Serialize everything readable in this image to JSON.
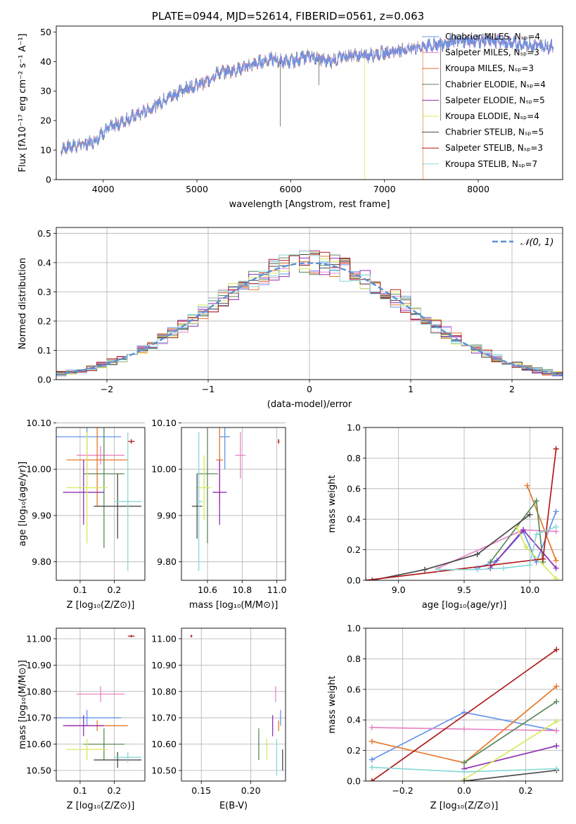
{
  "series_colors": [
    "#6495ed",
    "#e983c6",
    "#e8772a",
    "#5b8a5b",
    "#8e2fb5",
    "#d9e85c",
    "#4a4a4a",
    "#b01c1c",
    "#8ad8d8"
  ],
  "chart_data": [
    {
      "type": "line",
      "title": "PLATE=0944, MJD=52614, FIBERID=0561, z=0.063",
      "xlabel": "wavelength [Angstrom, rest frame]",
      "ylabel": "Flux [fλ10⁻¹⁷ erg cm⁻² s⁻¹ A⁻¹]",
      "xlim": [
        3500,
        8900
      ],
      "ylim": [
        0,
        52
      ],
      "xticks": [
        4000,
        5000,
        6000,
        7000,
        8000
      ],
      "yticks": [
        0,
        10,
        20,
        30,
        40,
        50
      ],
      "legend_position": "right",
      "legend": [
        "Chabrier MILES, Nₛₚ=4",
        "Salpeter MILES, Nₛₚ=3",
        "Kroupa MILES, Nₛₚ=3",
        "Chabrier ELODIE, Nₛₚ=4",
        "Salpeter ELODIE, Nₛₚ=5",
        "Kroupa ELODIE, Nₛₚ=4",
        "Chabrier STELIB, Nₛₚ=5",
        "Salpeter STELIB, Nₛₚ=3",
        "Kroupa STELIB, Nₛₚ=7"
      ],
      "spectrum_anchor_points": {
        "x": [
          3550,
          3600,
          3800,
          3900,
          4000,
          4100,
          4300,
          4500,
          4700,
          4900,
          5100,
          5200,
          5400,
          5600,
          5800,
          5900,
          6000,
          6200,
          6400,
          6600,
          6800,
          7000,
          7200,
          7400,
          7600,
          7800,
          8000,
          8200,
          8400,
          8800
        ],
        "y": [
          10,
          11,
          12,
          13,
          16,
          18,
          21,
          24,
          28,
          31,
          33,
          36,
          37,
          39,
          41,
          40,
          40,
          42,
          40,
          42,
          42,
          43,
          44,
          45,
          46,
          47,
          47,
          47,
          46,
          45
        ]
      }
    },
    {
      "type": "histogram",
      "xlabel": "(data-model)/error",
      "ylabel": "Normed distribution",
      "xlim": [
        -2.5,
        2.5
      ],
      "ylim": [
        0,
        0.52
      ],
      "xticks": [
        -2,
        -1,
        0,
        1,
        2
      ],
      "yticks": [
        0.0,
        0.1,
        0.2,
        0.3,
        0.4,
        0.5
      ],
      "grid": true,
      "legend_position": "top-right",
      "legend": [
        "𝒩(0, 1)"
      ],
      "bin_width": 0.1,
      "curve": "normal(0,1)"
    },
    {
      "type": "scatter",
      "xlabel": "Z [log₁₀(Z/Z⊙)]",
      "ylabel": "age  [log₁₀(age/yr)]",
      "xlim": [
        0.03,
        0.29
      ],
      "ylim": [
        9.76,
        10.09
      ],
      "xticks": [
        0.1,
        0.2
      ],
      "yticks": [
        9.8,
        9.9,
        10.0,
        10.1
      ],
      "grid": true,
      "points": [
        {
          "x": 0.12,
          "y": 10.07,
          "ex": 0.1,
          "ey": 0.07
        },
        {
          "x": 0.16,
          "y": 10.03,
          "ex": 0.07,
          "ey": 0.02
        },
        {
          "x": 0.15,
          "y": 10.02,
          "ex": 0.09,
          "ey": 0.1
        },
        {
          "x": 0.17,
          "y": 9.99,
          "ex": 0.06,
          "ey": 0.16
        },
        {
          "x": 0.11,
          "y": 9.95,
          "ex": 0.06,
          "ey": 0.07
        },
        {
          "x": 0.12,
          "y": 9.96,
          "ex": 0.06,
          "ey": 0.12
        },
        {
          "x": 0.21,
          "y": 9.92,
          "ex": 0.07,
          "ey": 0.07
        },
        {
          "x": 0.25,
          "y": 10.06,
          "ex": 0.01,
          "ey": 0.005
        },
        {
          "x": 0.24,
          "y": 9.93,
          "ex": 0.04,
          "ey": 0.15
        }
      ]
    },
    {
      "type": "scatter",
      "xlabel": "mass [log₁₀(M/M⊙)]",
      "ylabel": "",
      "xlim": [
        10.45,
        11.05
      ],
      "ylim": [
        9.76,
        10.09
      ],
      "xticks": [
        10.6,
        10.8,
        11.0
      ],
      "yticks": [
        9.8,
        9.9,
        10.0,
        10.1
      ],
      "grid": true,
      "points": [
        {
          "x": 10.7,
          "y": 10.07,
          "ex": 0.03,
          "ey": 0.07
        },
        {
          "x": 10.79,
          "y": 10.03,
          "ex": 0.03,
          "ey": 0.05
        },
        {
          "x": 10.67,
          "y": 10.02,
          "ex": 0.02,
          "ey": 0.1
        },
        {
          "x": 10.6,
          "y": 9.99,
          "ex": 0.06,
          "ey": 0.15
        },
        {
          "x": 10.67,
          "y": 9.95,
          "ex": 0.04,
          "ey": 0.07
        },
        {
          "x": 10.58,
          "y": 9.96,
          "ex": 0.04,
          "ey": 0.07
        },
        {
          "x": 10.54,
          "y": 9.92,
          "ex": 0.03,
          "ey": 0.07
        },
        {
          "x": 11.01,
          "y": 10.06,
          "ex": 0.005,
          "ey": 0.005
        },
        {
          "x": 10.55,
          "y": 9.93,
          "ex": 0.02,
          "ey": 0.15
        }
      ]
    },
    {
      "type": "line",
      "xlabel": "age  [log₁₀(age/yr)]",
      "ylabel": "mass weight",
      "xlim": [
        8.75,
        10.25
      ],
      "ylim": [
        0,
        1.0
      ],
      "xticks": [
        9.0,
        9.5,
        10.0
      ],
      "yticks": [
        0.0,
        0.2,
        0.4,
        0.6,
        0.8,
        1.0
      ],
      "grid": true,
      "series": [
        {
          "x": [
            9.6,
            9.75,
            9.95,
            10.05,
            10.2
          ],
          "y": [
            0.08,
            0.13,
            0.32,
            0.12,
            0.45
          ]
        },
        {
          "x": [
            9.3,
            9.95,
            10.2
          ],
          "y": [
            0.08,
            0.33,
            0.32
          ]
        },
        {
          "x": [
            9.98,
            10.2
          ],
          "y": [
            0.62,
            0.13
          ]
        },
        {
          "x": [
            9.7,
            10.05,
            10.1
          ],
          "y": [
            0.12,
            0.52,
            0.12
          ]
        },
        {
          "x": [
            9.7,
            9.95,
            10.2
          ],
          "y": [
            0.08,
            0.33,
            0.08
          ]
        },
        {
          "x": [
            9.9,
            9.97,
            10.2
          ],
          "y": [
            0.35,
            0.22,
            0.01
          ]
        },
        {
          "x": [
            8.8,
            9.2,
            9.6,
            10.0
          ],
          "y": [
            0.0,
            0.07,
            0.17,
            0.43
          ]
        },
        {
          "x": [
            8.75,
            10.1,
            10.2
          ],
          "y": [
            0.0,
            0.14,
            0.86
          ]
        },
        {
          "x": [
            9.3,
            9.6,
            9.8,
            10.0,
            10.05,
            10.2
          ],
          "y": [
            0.07,
            0.07,
            0.08,
            0.1,
            0.3,
            0.35
          ]
        }
      ]
    },
    {
      "type": "scatter",
      "xlabel": "Z [log₁₀(Z/Z⊙)]",
      "ylabel": "mass [log₁₀(M/M⊙)]",
      "xlim": [
        0.03,
        0.29
      ],
      "ylim": [
        10.46,
        11.04
      ],
      "xticks": [
        0.1,
        0.2
      ],
      "yticks": [
        10.5,
        10.6,
        10.7,
        10.8,
        10.9,
        11.0
      ],
      "grid": true,
      "points": [
        {
          "x": 0.12,
          "y": 10.7,
          "ex": 0.1,
          "ey": 0.03
        },
        {
          "x": 0.16,
          "y": 10.79,
          "ex": 0.07,
          "ey": 0.03
        },
        {
          "x": 0.15,
          "y": 10.67,
          "ex": 0.09,
          "ey": 0.02
        },
        {
          "x": 0.17,
          "y": 10.6,
          "ex": 0.06,
          "ey": 0.06
        },
        {
          "x": 0.11,
          "y": 10.67,
          "ex": 0.06,
          "ey": 0.04
        },
        {
          "x": 0.12,
          "y": 10.58,
          "ex": 0.06,
          "ey": 0.04
        },
        {
          "x": 0.21,
          "y": 10.54,
          "ex": 0.07,
          "ey": 0.03
        },
        {
          "x": 0.25,
          "y": 11.01,
          "ex": 0.01,
          "ey": 0.005
        },
        {
          "x": 0.24,
          "y": 10.55,
          "ex": 0.04,
          "ey": 0.02
        }
      ]
    },
    {
      "type": "scatter",
      "xlabel": "E(B-V)",
      "ylabel": "",
      "xlim": [
        0.13,
        0.235
      ],
      "ylim": [
        10.46,
        11.04
      ],
      "xticks": [
        0.15,
        0.2
      ],
      "yticks": [
        10.5,
        10.6,
        10.7,
        10.8,
        10.9,
        11.0
      ],
      "grid": true,
      "points": [
        {
          "x": 0.23,
          "y": 10.7,
          "ex": 0.0,
          "ey": 0.03
        },
        {
          "x": 0.225,
          "y": 10.79,
          "ex": 0.0,
          "ey": 0.03
        },
        {
          "x": 0.228,
          "y": 10.67,
          "ex": 0.0,
          "ey": 0.02
        },
        {
          "x": 0.208,
          "y": 10.6,
          "ex": 0.0,
          "ey": 0.06
        },
        {
          "x": 0.222,
          "y": 10.67,
          "ex": 0.0,
          "ey": 0.04
        },
        {
          "x": 0.216,
          "y": 10.58,
          "ex": 0.0,
          "ey": 0.04
        },
        {
          "x": 0.232,
          "y": 10.54,
          "ex": 0.0,
          "ey": 0.04
        },
        {
          "x": 0.14,
          "y": 11.01,
          "ex": 0.001,
          "ey": 0.005
        },
        {
          "x": 0.226,
          "y": 10.55,
          "ex": 0.0,
          "ey": 0.07
        }
      ]
    },
    {
      "type": "line",
      "xlabel": "Z [log₁₀(Z/Z⊙)]",
      "ylabel": "mass weight",
      "xlim": [
        -0.32,
        0.32
      ],
      "ylim": [
        0,
        1.0
      ],
      "xticks": [
        -0.2,
        0.0,
        0.2
      ],
      "yticks": [
        0.0,
        0.2,
        0.4,
        0.6,
        0.8,
        1.0
      ],
      "grid": true,
      "series": [
        {
          "x": [
            -0.3,
            0.0,
            0.3
          ],
          "y": [
            0.14,
            0.45,
            0.33
          ]
        },
        {
          "x": [
            -0.3,
            0.0,
            0.3
          ],
          "y": [
            0.35,
            0.34,
            0.33
          ]
        },
        {
          "x": [
            -0.3,
            0.0,
            0.3
          ],
          "y": [
            0.26,
            0.12,
            0.62
          ]
        },
        {
          "x": [
            0.0,
            0.3
          ],
          "y": [
            0.12,
            0.52
          ]
        },
        {
          "x": [
            0.0,
            0.3
          ],
          "y": [
            0.08,
            0.23
          ]
        },
        {
          "x": [
            0.0,
            0.3
          ],
          "y": [
            0.01,
            0.39
          ]
        },
        {
          "x": [
            0.0,
            0.3
          ],
          "y": [
            0.0,
            0.07
          ]
        },
        {
          "x": [
            -0.3,
            0.3
          ],
          "y": [
            0.0,
            0.86
          ]
        },
        {
          "x": [
            -0.3,
            0.0,
            0.3
          ],
          "y": [
            0.09,
            0.06,
            0.08
          ]
        }
      ]
    }
  ]
}
